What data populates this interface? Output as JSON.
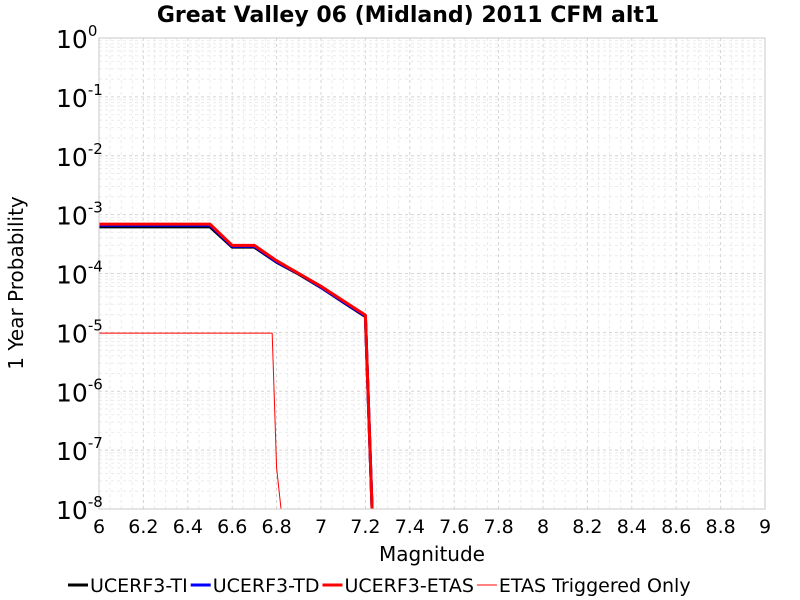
{
  "chart_data": {
    "type": "line",
    "title": "Great Valley 06 (Midland) 2011 CFM alt1",
    "xlabel": "Magnitude",
    "ylabel": "1 Year Probability",
    "xlim": [
      6,
      9
    ],
    "ylim": [
      1e-08,
      1
    ],
    "yscale": "log",
    "grid": true,
    "legend_position": "bottom",
    "xticks": [
      "6",
      "6.2",
      "6.4",
      "6.6",
      "6.8",
      "7",
      "7.2",
      "7.4",
      "7.6",
      "7.8",
      "8",
      "8.2",
      "8.4",
      "8.6",
      "8.8",
      "9"
    ],
    "yticks": [
      {
        "base": "10",
        "exp": "0"
      },
      {
        "base": "10",
        "exp": "-1"
      },
      {
        "base": "10",
        "exp": "-2"
      },
      {
        "base": "10",
        "exp": "-3"
      },
      {
        "base": "10",
        "exp": "-4"
      },
      {
        "base": "10",
        "exp": "-5"
      },
      {
        "base": "10",
        "exp": "-6"
      },
      {
        "base": "10",
        "exp": "-7"
      },
      {
        "base": "10",
        "exp": "-8"
      }
    ],
    "series": [
      {
        "name": "UCERF3-TI",
        "color": "#000000",
        "width": 3,
        "x": [
          6.0,
          6.1,
          6.2,
          6.3,
          6.4,
          6.5,
          6.6,
          6.7,
          6.8,
          6.9,
          7.0,
          7.1,
          7.2,
          7.23
        ],
        "y": [
          0.00062,
          0.00062,
          0.00062,
          0.00062,
          0.00062,
          0.00062,
          0.00028,
          0.00028,
          0.000155,
          9.72e-05,
          5.77e-05,
          3.25e-05,
          1.85e-05,
          1e-08
        ]
      },
      {
        "name": "UCERF3-TD",
        "color": "#0000ff",
        "width": 3,
        "x": [
          6.0,
          6.1,
          6.2,
          6.3,
          6.4,
          6.5,
          6.6,
          6.7,
          6.8,
          6.9,
          7.0,
          7.1,
          7.2,
          7.23
        ],
        "y": [
          0.00066,
          0.00066,
          0.00066,
          0.00066,
          0.00066,
          0.00066,
          0.00029,
          0.00029,
          0.000158,
          9.95e-05,
          5.82e-05,
          3.32e-05,
          1.9e-05,
          1e-08
        ]
      },
      {
        "name": "UCERF3-ETAS",
        "color": "#ff0000",
        "width": 3,
        "x": [
          6.0,
          6.1,
          6.2,
          6.3,
          6.4,
          6.5,
          6.6,
          6.7,
          6.8,
          6.9,
          7.0,
          7.1,
          7.2,
          7.23
        ],
        "y": [
          0.00069,
          0.00069,
          0.00069,
          0.00069,
          0.00069,
          0.00069,
          0.0003,
          0.0003,
          0.000165,
          0.0001,
          6.06e-05,
          3.45e-05,
          1.96e-05,
          1e-08
        ]
      },
      {
        "name": "ETAS Triggered Only",
        "color": "#ff0000",
        "width": 1,
        "x": [
          6.0,
          6.2,
          6.4,
          6.6,
          6.7,
          6.78,
          6.8,
          6.82
        ],
        "y": [
          9.7e-06,
          9.7e-06,
          9.7e-06,
          9.7e-06,
          9.7e-06,
          9.7e-06,
          5e-08,
          1e-08
        ]
      }
    ]
  }
}
